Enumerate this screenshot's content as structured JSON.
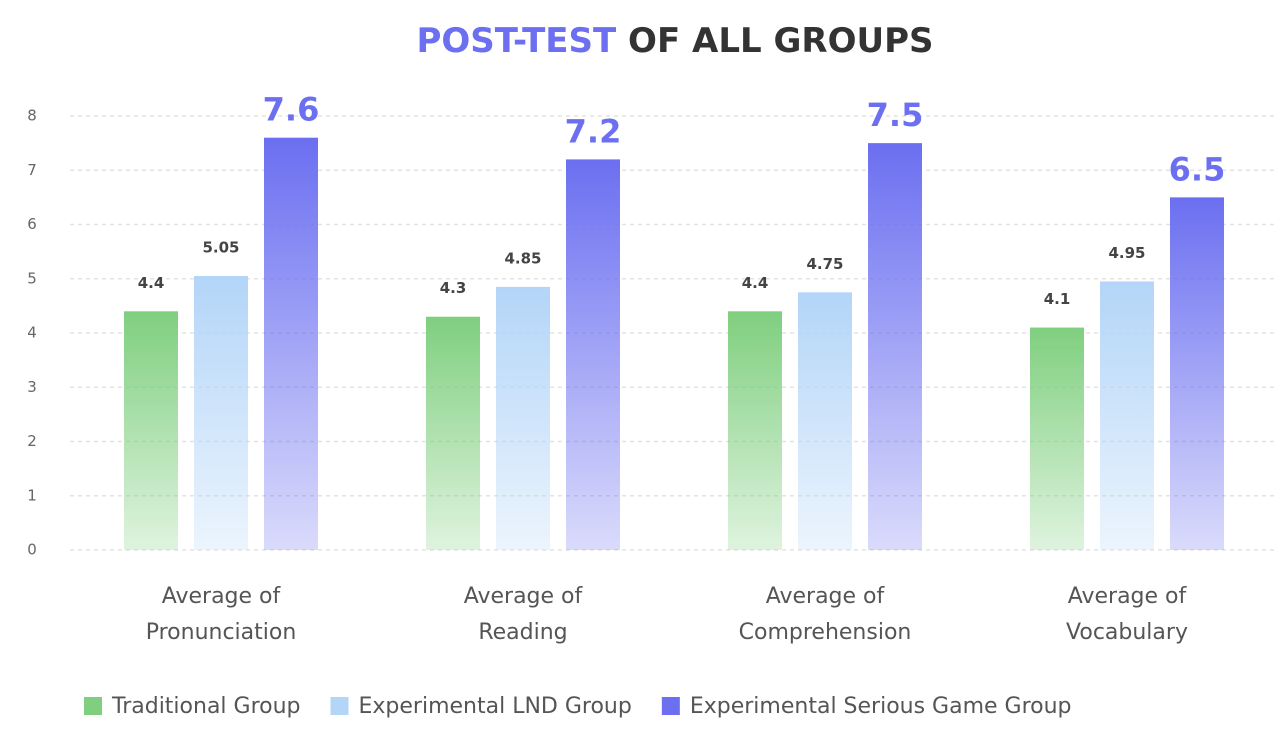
{
  "chart_data": {
    "type": "bar",
    "title": [
      "POST-TEST",
      "OF ALL GROUPS"
    ],
    "categories": [
      [
        "Average of",
        "Pronunciation"
      ],
      [
        "Average of",
        "Reading"
      ],
      [
        "Average of",
        "Comprehension"
      ],
      [
        "Average of",
        "Vocabulary"
      ]
    ],
    "series": [
      {
        "name": "Traditional Group",
        "color": "#7fcf7f",
        "values": [
          4.4,
          4.3,
          4.4,
          4.1
        ]
      },
      {
        "name": "Experimental LND Group",
        "color": "#b3d5f8",
        "values": [
          5.05,
          4.85,
          4.75,
          4.95
        ]
      },
      {
        "name": "Experimental Serious Game Group",
        "color": "#6b6ff0",
        "values": [
          7.6,
          7.2,
          7.5,
          6.5
        ]
      }
    ],
    "ylim": [
      0,
      8
    ],
    "yticks": [
      0,
      1,
      2,
      3,
      4,
      5,
      6,
      7,
      8
    ],
    "grid": true,
    "legend": "bottom"
  }
}
